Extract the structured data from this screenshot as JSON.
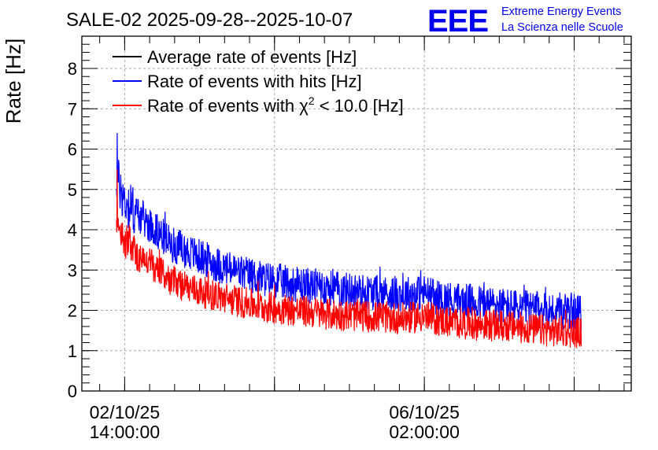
{
  "chart_data": {
    "type": "line",
    "title": "SALE-02 2025-09-28--2025-10-07",
    "xlabel": "",
    "ylabel": "Rate [Hz]",
    "ylim": [
      0,
      8.8
    ],
    "yticks": [
      "0",
      "1",
      "2",
      "3",
      "4",
      "5",
      "6",
      "7",
      "8"
    ],
    "xlim_hours": [
      0,
      154
    ],
    "xticks": [
      {
        "hours_from_start": 12,
        "date": "02/10/25",
        "time": "14:00:00"
      },
      {
        "hours_from_start": 96,
        "date": "06/10/25",
        "time": "02:00:00"
      }
    ],
    "grid": true,
    "legend_position": "top-left",
    "legend": {
      "avg_label": "Average rate of events [Hz]",
      "hits_label": "Rate of events with hits [Hz]",
      "chi_label_prefix": "Rate of events with ",
      "chi_symbol": "χ",
      "chi_sup": "2",
      "chi_label_suffix": " < 10.0 [Hz]"
    },
    "data_start_hours": 9.7,
    "data_end_hours": 140,
    "series": [
      {
        "name": "Rate of events with hits [Hz]",
        "color": "#0000ff",
        "profile_hours": [
          9.7,
          12,
          15,
          20,
          25,
          30,
          40,
          50,
          60,
          70,
          80,
          90,
          96,
          100,
          110,
          120,
          130,
          140
        ],
        "profile_rate": [
          5.3,
          4.7,
          4.45,
          4.05,
          3.65,
          3.45,
          3.05,
          2.8,
          2.65,
          2.55,
          2.45,
          2.4,
          2.45,
          2.3,
          2.2,
          2.1,
          2.0,
          1.95
        ],
        "noise_amplitude": 0.45,
        "peak": 6.4
      },
      {
        "name": "Rate of events with chi2 < 10.0 [Hz]",
        "color": "#ff0000",
        "profile_hours": [
          9.7,
          12,
          15,
          20,
          25,
          30,
          40,
          50,
          60,
          70,
          80,
          90,
          96,
          100,
          110,
          120,
          130,
          140
        ],
        "profile_rate": [
          4.1,
          3.7,
          3.4,
          3.1,
          2.75,
          2.55,
          2.3,
          2.1,
          2.0,
          1.9,
          1.85,
          1.8,
          1.85,
          1.75,
          1.65,
          1.6,
          1.5,
          1.45
        ],
        "noise_amplitude": 0.4,
        "peak": 5.5
      }
    ],
    "average_series_color": "#000000"
  },
  "logo": {
    "text": "EEE",
    "line1": "Extreme Energy Events",
    "line2": "La Scienza nelle Scuole",
    "color": "#0000ee"
  }
}
